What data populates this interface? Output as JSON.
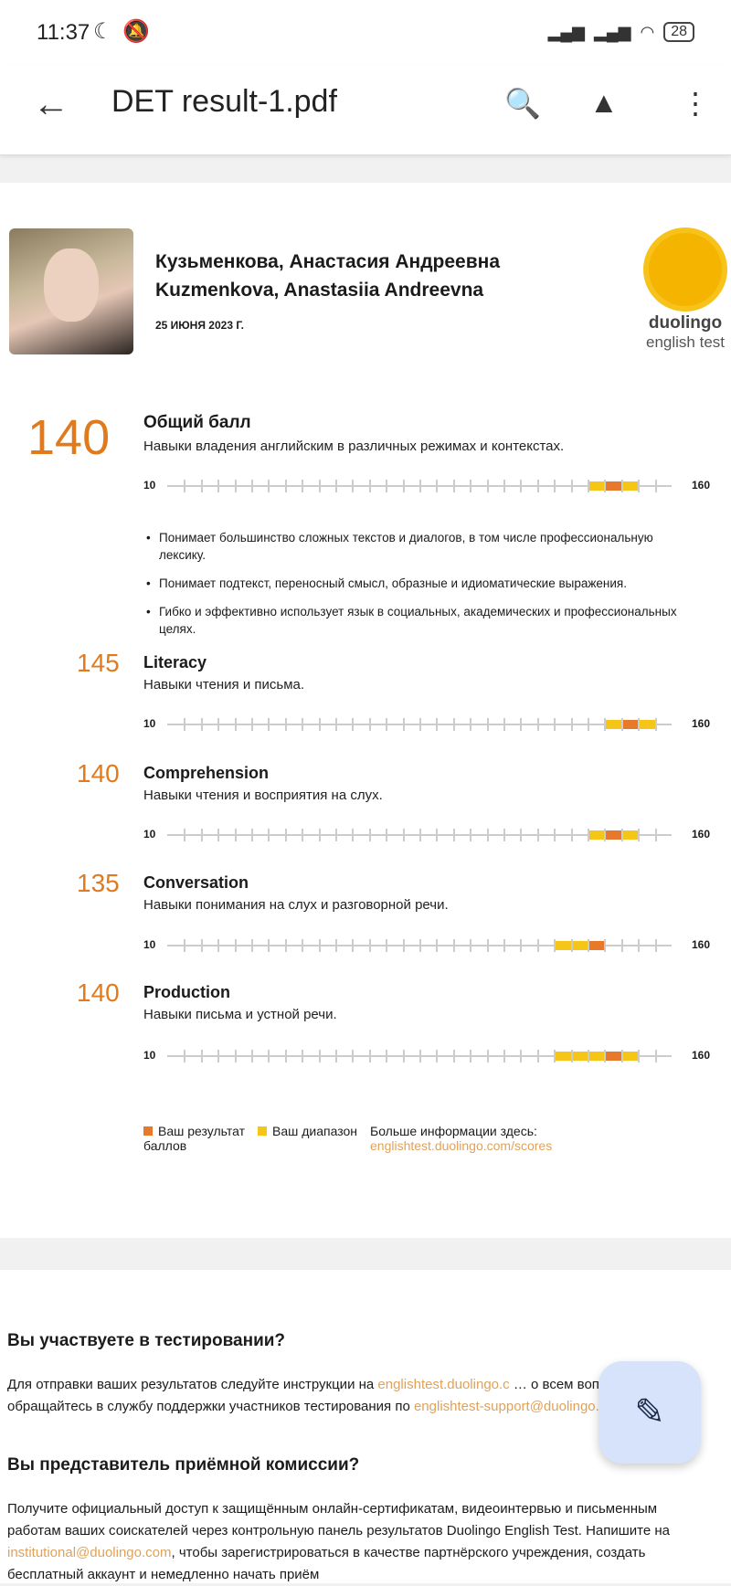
{
  "status_bar": {
    "time": "11:37",
    "battery": "28",
    "icons": [
      "moon-icon",
      "bell-off-icon",
      "signal-icon",
      "signal-icon",
      "wifi-icon",
      "battery-icon"
    ]
  },
  "toolbar": {
    "title": "DET result-1.pdf",
    "icons": [
      "back-arrow-icon",
      "search-document-icon",
      "drive-add-icon",
      "more-vert-icon"
    ]
  },
  "certificate": {
    "name_ru": "Кузьменкова, Анастасия Андреевна",
    "name_en": "Kuzmenkova, Anastasiia Andreevna",
    "date": "25 ИЮНЯ 2023 Г.",
    "logo": {
      "line1": "duolingo",
      "line2": "english test"
    },
    "scale": {
      "min": "10",
      "max": "160"
    },
    "overall": {
      "score": "140",
      "title": "Общий балл",
      "desc": "Навыки владения английским в различных режимах и контекстах.",
      "range": [
        135,
        150
      ],
      "score_segment": [
        140,
        145
      ]
    },
    "bullets": [
      "Понимает большинство сложных текстов и диалогов, в том числе профессиональную лексику.",
      "Понимает подтекст, переносный смысл, образные и идиоматические выражения.",
      "Гибко и эффективно использует язык в социальных, академических и профессиональных целях."
    ],
    "subscores": [
      {
        "score": "145",
        "title": "Literacy",
        "desc": "Навыки чтения и письма.",
        "range": [
          140,
          155
        ],
        "score_segment": [
          145,
          150
        ]
      },
      {
        "score": "140",
        "title": "Comprehension",
        "desc": "Навыки чтения и восприятия на слух.",
        "range": [
          135,
          150
        ],
        "score_segment": [
          140,
          145
        ]
      },
      {
        "score": "135",
        "title": "Conversation",
        "desc": "Навыки понимания на слух и разговорной речи.",
        "range": [
          125,
          140
        ],
        "score_segment": [
          135,
          140
        ]
      },
      {
        "score": "140",
        "title": "Production",
        "desc": "Навыки письма и устной речи.",
        "range": [
          125,
          150
        ],
        "score_segment": [
          140,
          145
        ]
      }
    ],
    "legend": {
      "score_label": "Ваш результат",
      "score_label2": "баллов",
      "range_label": "Ваш диапазон",
      "more_info": "Больше информации здесь:",
      "link": "englishtest.duolingo.com/scores"
    },
    "colors": {
      "score": "#e8792a",
      "range": "#f5c518",
      "accent": "#e07a1d"
    }
  },
  "page2": {
    "h1": "Вы участвуете в тестировании?",
    "p1a": "Для отправки ваших результатов следуйте инструкции на ",
    "p1link": "englishtest.duolingo.c",
    "p1b": " … о всем вопросам обращайтесь в службу поддержки участников тестирования по ",
    "p1email": "englishtest-support@duolingo.com",
    "p1c": ".",
    "h2": "Вы представитель приёмной комиссии?",
    "p2a": "Получите официальный доступ к защищённым онлайн-сертификатам, видеоинтервью и письменным работам ваших соискателей через контрольную панель результатов Duolingo English Test. Напишите на ",
    "p2email": "institutional@duolingo.com",
    "p2b": ", чтобы зарегистрироваться в качестве партнёрского учреждения, создать бесплатный аккаунт и немедленно начать приём"
  },
  "fab": {
    "icon": "annotate-pen-icon"
  }
}
